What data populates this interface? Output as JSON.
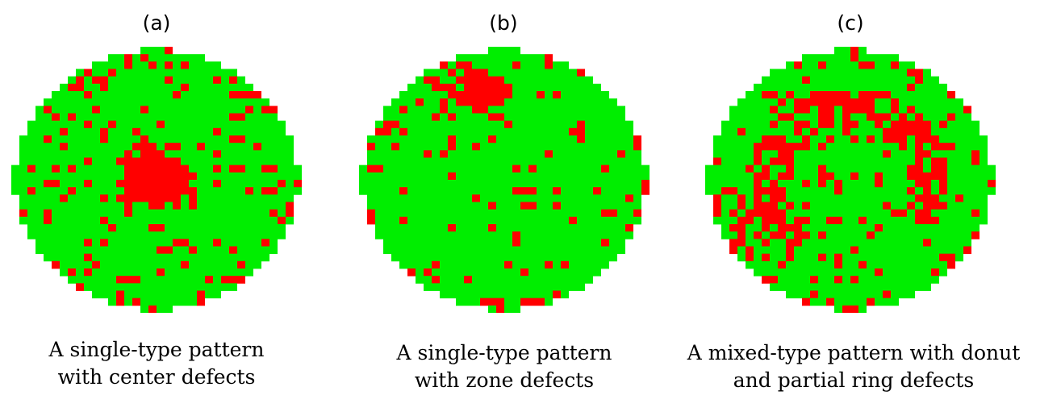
{
  "colors": {
    "good_die": "#00ee00",
    "defect_die": "#ff0000",
    "background": "#ffffff"
  },
  "panels": [
    {
      "label": "(a)",
      "caption_line1": "A single-type pattern",
      "caption_line2": "with center defects"
    },
    {
      "label": "(b)",
      "caption_line1": "A single-type pattern",
      "caption_line2": "with zone defects"
    },
    {
      "label": "(c)",
      "caption_line1": "A mixed-type pattern with donut",
      "caption_line2": "and partial ring defects"
    }
  ]
}
